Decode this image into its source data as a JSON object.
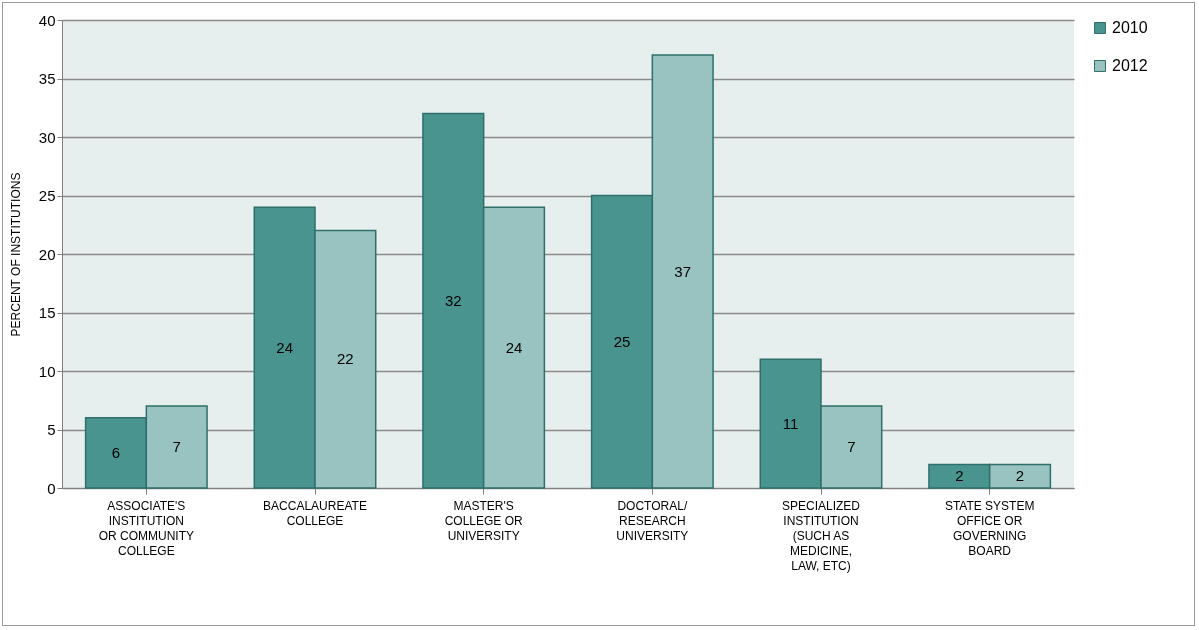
{
  "chart_data": {
    "type": "bar",
    "ylabel": "PERCENT OF INSTITUTIONS",
    "categories": [
      "ASSOCIATE'S INSTITUTION OR COMMUNITY COLLEGE",
      "BACCALAUREATE COLLEGE",
      "MASTER'S COLLEGE OR UNIVERSITY",
      "DOCTORAL/ RESEARCH UNIVERSITY",
      "SPECIALIZED INSTITUTION (SUCH AS MEDICINE, LAW, ETC)",
      "STATE SYSTEM OFFICE OR GOVERNING BOARD"
    ],
    "series": [
      {
        "name": "2010",
        "color": "#4a9490",
        "values": [
          6,
          24,
          32,
          25,
          11,
          2
        ]
      },
      {
        "name": "2012",
        "color": "#98c3c0",
        "values": [
          7,
          22,
          24,
          37,
          7,
          2
        ]
      }
    ],
    "ylim": [
      0,
      40
    ],
    "yticks": [
      0,
      5,
      10,
      15,
      20,
      25,
      30,
      35,
      40
    ],
    "grid": "y",
    "legend": "right",
    "data_labels": true
  }
}
